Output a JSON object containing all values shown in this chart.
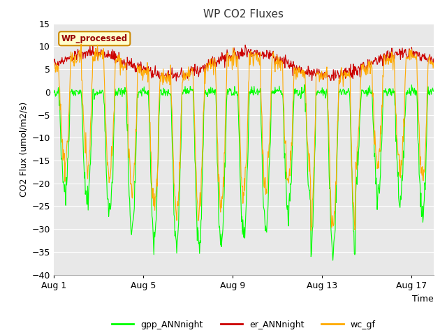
{
  "title": "WP CO2 Fluxes",
  "xlabel": "Time",
  "ylabel": "CO2 Flux (umol/m2/s)",
  "ylim": [
    -40,
    15
  ],
  "yticks": [
    -40,
    -35,
    -30,
    -25,
    -20,
    -15,
    -10,
    -5,
    0,
    5,
    10,
    15
  ],
  "xtick_positions": [
    0,
    4,
    8,
    12,
    16
  ],
  "xtick_labels": [
    "Aug 1",
    "Aug 5",
    "Aug 9",
    "Aug 13",
    "Aug 17"
  ],
  "xlim": [
    0,
    17
  ],
  "fig_bg_color": "#ffffff",
  "plot_bg_color": "#e8e8e8",
  "grid_color": "#ffffff",
  "gpp_color": "#00ff00",
  "er_color": "#cc0000",
  "wc_color": "#ffaa00",
  "annotation_text": "WP_processed",
  "annotation_bg": "#ffffcc",
  "annotation_border": "#cc8800",
  "annotation_text_color": "#990000",
  "legend_labels": [
    "gpp_ANNnight",
    "er_ANNnight",
    "wc_gf"
  ],
  "n_days": 17,
  "pts_per_day": 48,
  "seed": 42
}
